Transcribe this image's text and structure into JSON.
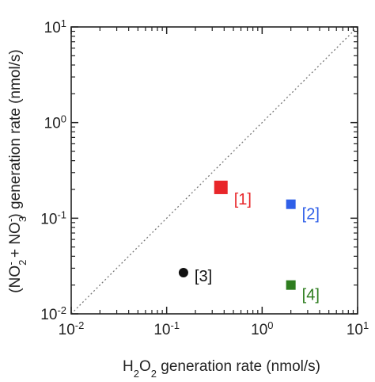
{
  "chart_data": {
    "type": "scatter",
    "xscale": "log",
    "yscale": "log",
    "xlim": [
      0.01,
      10
    ],
    "ylim": [
      0.01,
      10
    ],
    "xlabel": {
      "pre": "H",
      "sub1": "2",
      "mid": "O",
      "sub2": "2",
      "post": " generation rate (nmol/s)"
    },
    "ylabel": {
      "p1": "(NO",
      "sub1": "2",
      "sup1": "-",
      "p2": " + NO",
      "sub2": "3",
      "sup2": "-",
      "p3": ") generation rate (nmol/s)"
    },
    "xticks": [
      {
        "value": 0.01,
        "base": "10",
        "exp": "-2"
      },
      {
        "value": 0.1,
        "base": "10",
        "exp": "-1"
      },
      {
        "value": 1,
        "base": "10",
        "exp": "0"
      },
      {
        "value": 10,
        "base": "10",
        "exp": "1"
      }
    ],
    "yticks": [
      {
        "value": 0.01,
        "base": "10",
        "exp": "-2"
      },
      {
        "value": 0.1,
        "base": "10",
        "exp": "-1"
      },
      {
        "value": 1,
        "base": "10",
        "exp": "0"
      },
      {
        "value": 10,
        "base": "10",
        "exp": "1"
      }
    ],
    "reference_line": {
      "style": "dotted",
      "slope": 1
    },
    "points": [
      {
        "label": "[1]",
        "x": 0.37,
        "y": 0.21,
        "marker": "square",
        "size": "large",
        "color": "#e8262a"
      },
      {
        "label": "[2]",
        "x": 2.0,
        "y": 0.14,
        "marker": "square",
        "size": "small",
        "color": "#2f5fe8"
      },
      {
        "label": "[3]",
        "x": 0.15,
        "y": 0.027,
        "marker": "circle",
        "size": "small",
        "color": "#111111"
      },
      {
        "label": "[4]",
        "x": 2.0,
        "y": 0.02,
        "marker": "square",
        "size": "small",
        "color": "#2e7d1f"
      }
    ]
  }
}
